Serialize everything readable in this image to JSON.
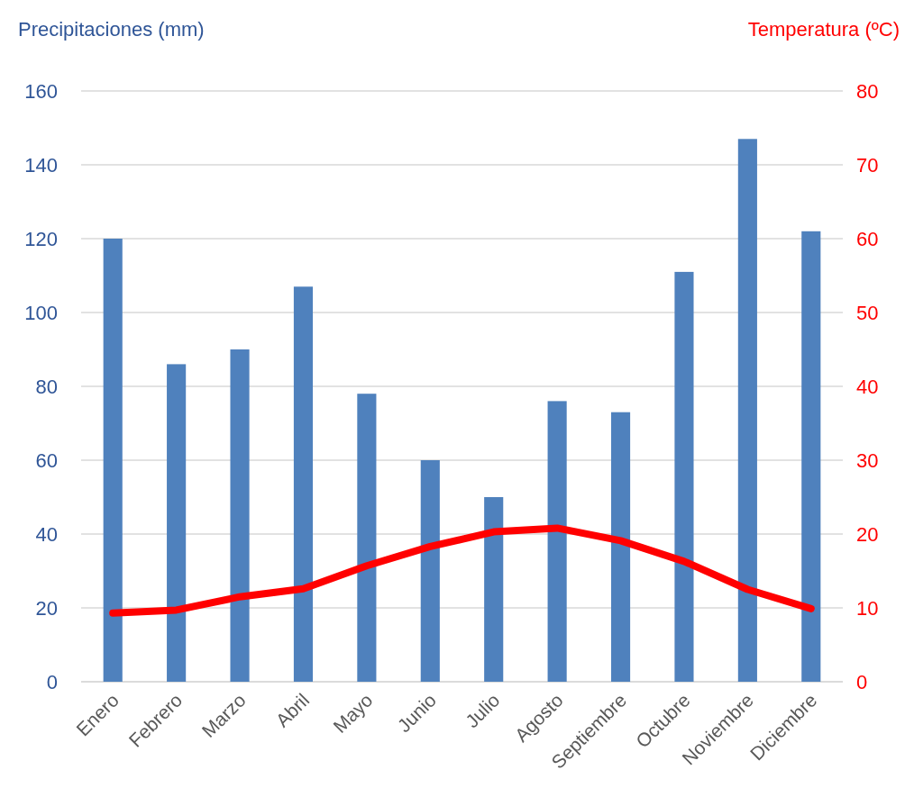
{
  "chart_data": {
    "type": "bar",
    "ylabel": "Precipitaciones (mm)",
    "y2label": "Temperatura (ºC)",
    "categories": [
      "Enero",
      "Febrero",
      "Marzo",
      "Abril",
      "Mayo",
      "Junio",
      "Julio",
      "Agosto",
      "Septiembre",
      "Octubre",
      "Noviembre",
      "Diciembre"
    ],
    "series": [
      {
        "color": "#4f81bd",
        "values": [
          120,
          86,
          90,
          107,
          78,
          60,
          50,
          76,
          73,
          111,
          147,
          122
        ]
      },
      {
        "type": "line",
        "axis": "y2",
        "color": "#ff0000",
        "values": [
          9.3,
          9.7,
          11.5,
          12.6,
          15.7,
          18.3,
          20.3,
          20.8,
          19.1,
          16.3,
          12.5,
          9.9
        ]
      }
    ],
    "ylim": [
      0,
      160
    ],
    "yticks": [
      0,
      20,
      40,
      60,
      80,
      100,
      120,
      140,
      160
    ],
    "y2lim": [
      0,
      80
    ],
    "y2ticks": [
      0,
      10,
      20,
      30,
      40,
      50,
      60,
      70,
      80
    ],
    "grid": "y",
    "marker": "none",
    "line_style": "solid"
  }
}
